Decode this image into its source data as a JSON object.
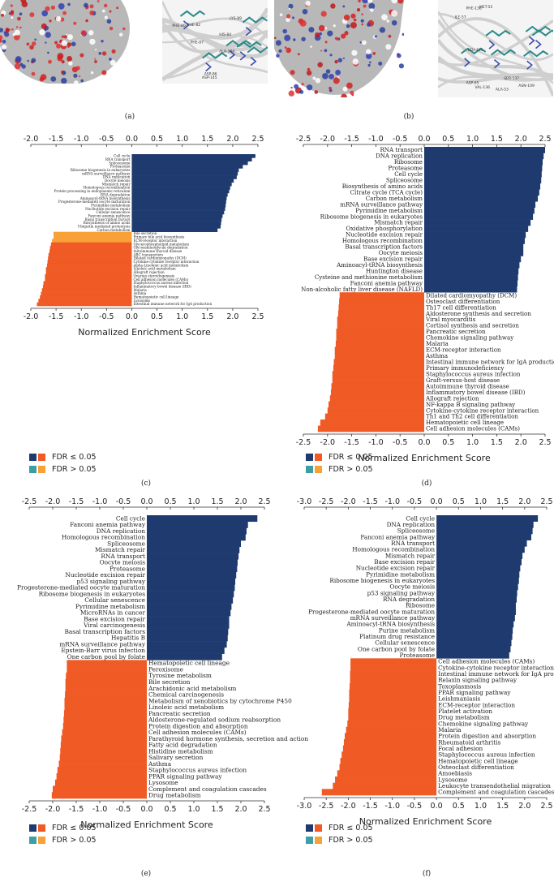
{
  "panel_labels": {
    "a": "(a)",
    "b": "(b)",
    "c": "(c)",
    "d": "(d)",
    "e": "(e)",
    "f": "(f)"
  },
  "colors": {
    "pos_sig": "#1f3a6e",
    "pos_ns": "#3aa0a6",
    "neg_sig": "#ef5a25",
    "neg_ns": "#f7a136"
  },
  "legend": {
    "sig": "FDR ≤ 0.05",
    "ns": "FDR > 0.05"
  },
  "molecules": {
    "a_residues": [
      "PHE-80",
      "PHE-82",
      "HIS-84",
      "ASP-86",
      "LYS-89",
      "ASP-145",
      "ALA-144",
      "PHE-87"
    ],
    "b_residues": [
      "VAL-136",
      "ALA-53",
      "ASP-65",
      "SER-137",
      "PHE-138",
      "ILE-57",
      "LEU-105",
      "ASN-109",
      "MET-55"
    ]
  },
  "chart_data": [
    {
      "id": "c",
      "type": "bar",
      "orientation": "horizontal",
      "xlabel": "Normalized Enrichment Score",
      "xlim": [
        -2.0,
        2.5
      ],
      "xticks": [
        -2.0,
        -1.5,
        -1.0,
        -0.5,
        0.0,
        0.5,
        1.0,
        1.5,
        2.0,
        2.5
      ],
      "categories": [
        "Cell cycle",
        "RNA transport",
        "Spliceosome",
        "Proteasome",
        "Ribosome biogenesis in eukaryotes",
        "mRNA surveillance pathway",
        "DNA replication",
        "Oocyte meiosis",
        "Mismatch repair",
        "Homologous recombination",
        "Protein processing in endoplasmic reticulum",
        "RNA degradation",
        "Aminoacyl-tRNA biosynthesis",
        "Progesterone-mediated oocyte maturation",
        "Pyrimidine metabolism",
        "Nucleotide excision repair",
        "Cellular senescence",
        "Fanconi anemia pathway",
        "Basal transcription factors",
        "Biosynthesis of amino acids",
        "Ubiquitin mediated proteolysis",
        "Carbon metabolism",
        "Bile secretion",
        "Primary bile acid biosynthesis",
        "ECM-receptor interaction",
        "Glycerophospholipid metabolism",
        "Glycosaminoglycan degradation",
        "Autoimmune thyroid disease",
        "ABC transporters",
        "Dilated cardiomyopathy (DCM)",
        "Cytokine-cytokine receptor interaction",
        "alpha-Linolenic acid metabolism",
        "Linoleic acid metabolism",
        "Allograft rejection",
        "Ovarian steroidogenesis",
        "Cell adhesion molecules (CAMs)",
        "Staphylococcus aureus infection",
        "Inflammatory bowel disease (IBD)",
        "Malaria",
        "Asthma",
        "Hematopoietic cell lineage",
        "Lysosome",
        "Intestinal immune network for IgA production"
      ],
      "values": [
        2.45,
        2.38,
        2.3,
        2.2,
        2.12,
        2.1,
        2.08,
        2.02,
        1.98,
        1.95,
        1.93,
        1.9,
        1.88,
        1.87,
        1.86,
        1.85,
        1.83,
        1.8,
        1.78,
        1.77,
        1.76,
        1.7,
        -1.55,
        -1.55,
        -1.58,
        -1.6,
        -1.62,
        -1.63,
        -1.65,
        -1.66,
        -1.67,
        -1.68,
        -1.7,
        -1.7,
        -1.72,
        -1.72,
        -1.75,
        -1.76,
        -1.78,
        -1.8,
        -1.82,
        -1.85,
        -1.88
      ],
      "significant": [
        true,
        true,
        true,
        true,
        true,
        true,
        true,
        true,
        true,
        true,
        true,
        true,
        true,
        true,
        true,
        true,
        true,
        true,
        true,
        true,
        true,
        true,
        false,
        false,
        false,
        true,
        true,
        true,
        true,
        true,
        true,
        true,
        true,
        true,
        true,
        true,
        true,
        true,
        true,
        true,
        true,
        true,
        true
      ]
    },
    {
      "id": "d",
      "type": "bar",
      "orientation": "horizontal",
      "xlabel": "Normalized Enrichment Score",
      "xlim": [
        -2.5,
        2.5
      ],
      "xticks": [
        -2.5,
        -2.0,
        -1.5,
        -1.0,
        -0.5,
        0.0,
        0.5,
        1.0,
        1.5,
        2.0,
        2.5
      ],
      "categories": [
        "RNA transport",
        "DNA replication",
        "Ribosome",
        "Proteasome",
        "Cell cycle",
        "Spliceosome",
        "Biosynthesis of amino acids",
        "Citrate cycle (TCA cycle)",
        "Carbon metabolism",
        "mRNA surveillance pathway",
        "Pyrimidine metabolism",
        "Ribosome biogenesis in eukaryotes",
        "Mismatch repair",
        "Oxidative phosphorylation",
        "Nucleotide excision repair",
        "Homologous recombination",
        "Basal transcription factors",
        "Oocyte meiosis",
        "Base excision repair",
        "Aminoacyl-tRNA biosynthesis",
        "Huntington disease",
        "Cysteine and methionine metabolism",
        "Fanconi anemia pathway",
        "Non-alcoholic fatty liver disease (NAFLD)",
        "Dilated cardiomyopathy (DCM)",
        "Osteoclast differentiation",
        "Th17 cell differentiation",
        "Aldosterone synthesis and secretion",
        "Viral myocarditis",
        "Cortisol synthesis and secretion",
        "Pancreatic secretion",
        "Chemokine signaling pathway",
        "Malaria",
        "ECM-receptor interaction",
        "Asthma",
        "Intestinal immune network for IgA production",
        "Primary immunodeficiency",
        "Staphylococcus aureus infection",
        "Graft-versus-host disease",
        "Autoimmune thyroid disease",
        "Inflammatory bowel disease (IBD)",
        "Allograft rejection",
        "NF-kappa B signaling pathway",
        "Cytokine-cytokine receptor interaction",
        "Th1 and Th2 cell differentiation",
        "Hematopoietic cell lineage",
        "Cell adhesion molecules (CAMs)"
      ],
      "values": [
        2.5,
        2.47,
        2.45,
        2.44,
        2.43,
        2.42,
        2.4,
        2.38,
        2.35,
        2.3,
        2.28,
        2.25,
        2.2,
        2.15,
        2.1,
        2.08,
        2.05,
        2.05,
        2.0,
        1.97,
        1.95,
        1.94,
        1.93,
        1.92,
        -1.75,
        -1.76,
        -1.77,
        -1.78,
        -1.8,
        -1.8,
        -1.82,
        -1.82,
        -1.83,
        -1.85,
        -1.85,
        -1.87,
        -1.88,
        -1.9,
        -1.9,
        -1.92,
        -1.93,
        -1.95,
        -1.98,
        -2.0,
        -2.05,
        -2.15,
        -2.2
      ],
      "significant": [
        true,
        true,
        true,
        true,
        true,
        true,
        true,
        true,
        true,
        true,
        true,
        true,
        true,
        true,
        true,
        true,
        true,
        true,
        true,
        true,
        true,
        true,
        true,
        true,
        true,
        true,
        true,
        true,
        true,
        true,
        true,
        true,
        true,
        true,
        true,
        true,
        true,
        true,
        true,
        true,
        true,
        true,
        true,
        true,
        true,
        true,
        true
      ]
    },
    {
      "id": "e",
      "type": "bar",
      "orientation": "horizontal",
      "xlabel": "Normalized Enrichment Score",
      "xlim": [
        -2.5,
        2.5
      ],
      "xticks": [
        -2.5,
        -2.0,
        -1.5,
        -1.0,
        -0.5,
        0.0,
        0.5,
        1.0,
        1.5,
        2.0,
        2.5
      ],
      "categories": [
        "Cell cycle",
        "Fanconi anemia pathway",
        "DNA replication",
        "Homologous recombination",
        "Spliceosome",
        "Mismatch repair",
        "RNA transport",
        "Oocyte meiosis",
        "Proteasome",
        "Nucleotide excision repair",
        "p53 signaling pathway",
        "Progesterone-mediated oocyte maturation",
        "Ribosome biogenesis in eukaryotes",
        "Cellular senescence",
        "Pyrimidine metabolism",
        "MicroRNAs in cancer",
        "Base excision repair",
        "Viral carcinogenesis",
        "Basal transcription factors",
        "Hepatitis B",
        "mRNA surveillance pathway",
        "Epstein-Barr virus infection",
        "One carbon pool by folate",
        "Hematopoietic cell lineage",
        "Peroxisome",
        "Tyrosine metabolism",
        "Bile secretion",
        "Arachidonic acid metabolism",
        "Chemical carcinogenesis",
        "Metabolism of xenobiotics by cytochrome P450",
        "Linoleic acid metabolism",
        "Pancreatic secretion",
        "Aldosterone-regulated sodium reabsorption",
        "Protein digestion and absorption",
        "Cell adhesion molecules (CAMs)",
        "Parathyroid hormone synthesis, secretion and action",
        "Fatty acid degradation",
        "Histidine metabolism",
        "Salivary secretion",
        "Asthma",
        "Staphylococcus aureus infection",
        "PPAR signaling pathway",
        "Lysosome",
        "Complement and coagulation cascades",
        "Drug metabolism"
      ],
      "values": [
        2.35,
        2.15,
        2.12,
        2.1,
        2.0,
        1.97,
        1.95,
        1.93,
        1.92,
        1.9,
        1.88,
        1.87,
        1.85,
        1.83,
        1.8,
        1.78,
        1.75,
        1.75,
        1.73,
        1.72,
        1.7,
        1.65,
        1.6,
        -1.7,
        -1.7,
        -1.72,
        -1.73,
        -1.73,
        -1.74,
        -1.75,
        -1.75,
        -1.76,
        -1.77,
        -1.78,
        -1.8,
        -1.82,
        -1.83,
        -1.84,
        -1.85,
        -1.87,
        -1.9,
        -1.92,
        -1.95,
        -2.0,
        -2.02
      ],
      "significant": [
        true,
        true,
        true,
        true,
        true,
        true,
        true,
        true,
        true,
        true,
        true,
        true,
        true,
        true,
        true,
        true,
        true,
        true,
        true,
        true,
        true,
        true,
        true,
        true,
        true,
        true,
        true,
        true,
        true,
        true,
        true,
        true,
        true,
        true,
        true,
        true,
        true,
        true,
        true,
        true,
        true,
        true,
        true,
        true,
        true
      ]
    },
    {
      "id": "f",
      "type": "bar",
      "orientation": "horizontal",
      "xlabel": "Normalized Enrichment Score",
      "xlim": [
        -3.0,
        2.5
      ],
      "xticks": [
        -3.0,
        -2.5,
        -2.0,
        -1.5,
        -1.0,
        -0.5,
        0.0,
        0.5,
        1.0,
        1.5,
        2.0,
        2.5
      ],
      "categories": [
        "Cell cycle",
        "DNA replication",
        "Spliceosome",
        "Fanconi anemia pathway",
        "RNA transport",
        "Homologous recombination",
        "Mismatch repair",
        "Base excision repair",
        "Nucleotide excision repair",
        "Pyrimidine metabolism",
        "Ribosome biogenesis in eukaryotes",
        "Oocyte meiosis",
        "p53 signaling pathway",
        "RNA degradation",
        "Ribosome",
        "Progesterone-mediated oocyte maturation",
        "mRNA surveillance pathway",
        "Aminoacyl-tRNA biosynthesis",
        "Purine metabolism",
        "Platinum drug resistance",
        "Cellular senescence",
        "One carbon pool by folate",
        "Proteasome",
        "Cell adhesion molecules (CAMs)",
        "Cytokine-cytokine receptor interaction",
        "Intestinal immune network for IgA production",
        "Relaxin signaling pathway",
        "Toxoplasmosis",
        "PPAR signaling pathway",
        "Leishmaniasis",
        "ECM-receptor interaction",
        "Platelet activation",
        "Drug metabolism",
        "Chemokine signaling pathway",
        "Malaria",
        "Protein digestion and absorption",
        "Rheumatoid arthritis",
        "Focal adhesion",
        "Staphylococcus aureus infection",
        "Hematopoietic cell lineage",
        "Osteoclast differentiation",
        "Amoebiasis",
        "Lysosome",
        "Leukocyte transendothelial migration",
        "Complement and coagulation cascades"
      ],
      "values": [
        2.3,
        2.2,
        2.18,
        2.15,
        2.05,
        2.0,
        1.95,
        1.93,
        1.9,
        1.88,
        1.87,
        1.85,
        1.83,
        1.82,
        1.8,
        1.8,
        1.78,
        1.75,
        1.73,
        1.72,
        1.7,
        1.68,
        1.65,
        -1.95,
        -1.95,
        -1.96,
        -1.96,
        -1.97,
        -1.98,
        -1.98,
        -1.99,
        -2.0,
        -2.0,
        -2.02,
        -2.05,
        -2.08,
        -2.1,
        -2.12,
        -2.15,
        -2.18,
        -2.2,
        -2.25,
        -2.3,
        -2.35,
        -2.6
      ],
      "significant": [
        true,
        true,
        true,
        true,
        true,
        true,
        true,
        true,
        true,
        true,
        true,
        true,
        true,
        true,
        true,
        true,
        true,
        true,
        true,
        true,
        true,
        true,
        true,
        true,
        true,
        true,
        true,
        true,
        true,
        true,
        true,
        true,
        true,
        true,
        true,
        true,
        true,
        true,
        true,
        true,
        true,
        true,
        true,
        true,
        true
      ]
    }
  ]
}
